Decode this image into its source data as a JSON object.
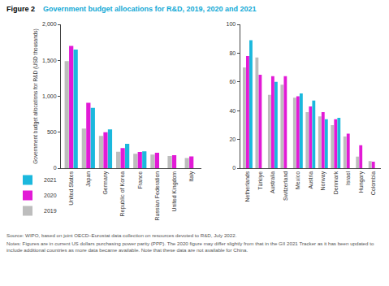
{
  "figure": {
    "label": "Figure 2",
    "title": "Government budget allocations for R&D, 2019, 2020 and 2021"
  },
  "chart_data": [
    {
      "type": "bar",
      "ylabel": "Government budget allocations for R&D (USD thousands)",
      "categories": [
        "United States",
        "Japan",
        "Germany",
        "Republic of Korea",
        "France",
        "Russian Federation",
        "United Kingdom",
        "Italy"
      ],
      "series": [
        {
          "name": "2019",
          "color": "#bdbdbd",
          "values": [
            1490,
            550,
            450,
            230,
            200,
            190,
            170,
            140
          ]
        },
        {
          "name": "2020",
          "color": "#e21ad6",
          "values": [
            1700,
            910,
            500,
            280,
            225,
            215,
            180,
            165
          ]
        },
        {
          "name": "2021",
          "color": "#1bb8dd",
          "values": [
            1650,
            840,
            540,
            340,
            235,
            null,
            null,
            null
          ]
        }
      ],
      "ylim": [
        0,
        2000
      ],
      "yticks": [
        0,
        500,
        {
          "value": 1000,
          "label": "1,000"
        },
        {
          "value": 1500,
          "label": "1,500"
        },
        {
          "value": 2000,
          "label": "2,000"
        }
      ],
      "grid": false,
      "legend": "lower left"
    },
    {
      "type": "bar",
      "categories": [
        "Netherlands",
        "Türkiye",
        "Australia",
        "Switzerland",
        "Mexico",
        "Austria",
        "Norway",
        "Denmark",
        "Israel",
        "Hungary",
        "Colombia"
      ],
      "series": [
        {
          "name": "2019",
          "color": "#bdbdbd",
          "values": [
            70,
            77,
            51,
            58,
            49,
            39,
            36,
            30,
            22,
            8,
            5
          ]
        },
        {
          "name": "2020",
          "color": "#e21ad6",
          "values": [
            78,
            65,
            64,
            64,
            50,
            43,
            39,
            34,
            24,
            16,
            4.5
          ]
        },
        {
          "name": "2021",
          "color": "#1bb8dd",
          "values": [
            89,
            null,
            60,
            null,
            52,
            47,
            34,
            35,
            null,
            null,
            null
          ]
        }
      ],
      "ylim": [
        0,
        100
      ],
      "yticks": [
        0,
        20,
        40,
        60,
        80,
        100
      ],
      "grid": false
    }
  ],
  "source": "Source: WIPO, based on joint OECD–Eurostat data collection on resources devoted to R&D, July 2022.",
  "notes": "Notes: Figures are in current US dollars purchasing power parity (PPP). The 2020 figure may differ slightly from that in the GII 2021 Tracker as it has been updated to include additional countries as more data became available. Note that these data are not available for China."
}
